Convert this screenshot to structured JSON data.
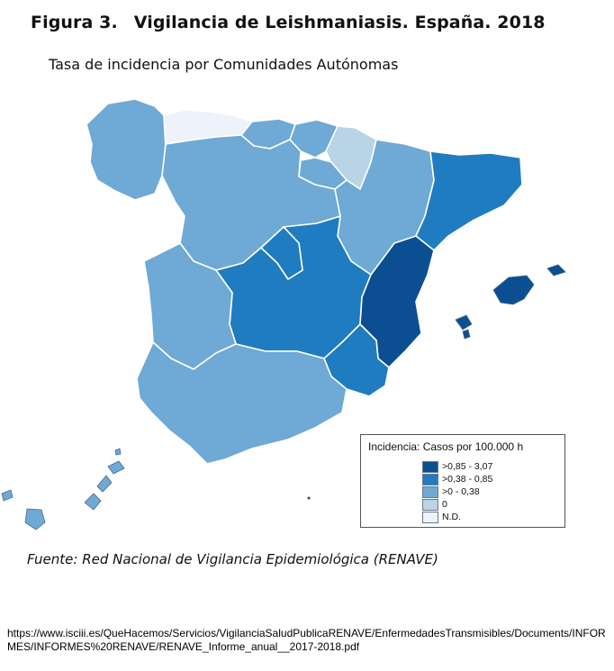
{
  "figure": {
    "number": "Figura 3.",
    "title": "Vigilancia de Leishmaniasis. España. 2018",
    "subtitle": "Tasa de incidencia por Comunidades Autónomas"
  },
  "colors": {
    "high": "#0b4f92",
    "mid": "#1f7cc0",
    "low": "#6fa9d5",
    "zero": "#b8d4e6",
    "nd": "#eef2fa"
  },
  "legend": {
    "title": "Incidencia: Casos por 100.000 h",
    "items": [
      {
        "label": ">0,85 - 3,07",
        "class": "high"
      },
      {
        "label": ">0,38 - 0,85",
        "class": "mid"
      },
      {
        "label": ">0 - 0,38",
        "class": "low"
      },
      {
        "label": "0",
        "class": "zero"
      },
      {
        "label": "N.D.",
        "class": "nd"
      }
    ]
  },
  "regions": [
    {
      "name": "Galicia",
      "class": "low"
    },
    {
      "name": "Asturias",
      "class": "nd"
    },
    {
      "name": "Cantabria",
      "class": "low"
    },
    {
      "name": "País Vasco",
      "class": "low"
    },
    {
      "name": "Navarra",
      "class": "zero"
    },
    {
      "name": "La Rioja",
      "class": "low"
    },
    {
      "name": "Castilla y León",
      "class": "low"
    },
    {
      "name": "Aragón",
      "class": "low"
    },
    {
      "name": "Cataluña",
      "class": "mid"
    },
    {
      "name": "Madrid",
      "class": "mid"
    },
    {
      "name": "Castilla-La Mancha",
      "class": "mid"
    },
    {
      "name": "Extremadura",
      "class": "low"
    },
    {
      "name": "Comunitat Valenciana",
      "class": "high"
    },
    {
      "name": "Murcia",
      "class": "mid"
    },
    {
      "name": "Andalucía",
      "class": "low"
    },
    {
      "name": "Illes Balears",
      "class": "high"
    },
    {
      "name": "Canarias",
      "class": "low"
    }
  ],
  "source": "Fuente: Red Nacional de Vigilancia Epidemiológica (RENAVE)",
  "url": "https://www.isciii.es/QueHacemos/Servicios/VigilanciaSaludPublicaRENAVE/EnfermedadesTransmisibles/Documents/INFORMES/INFORMES%20RENAVE/RENAVE_Informe_anual__2017-2018.pdf"
}
